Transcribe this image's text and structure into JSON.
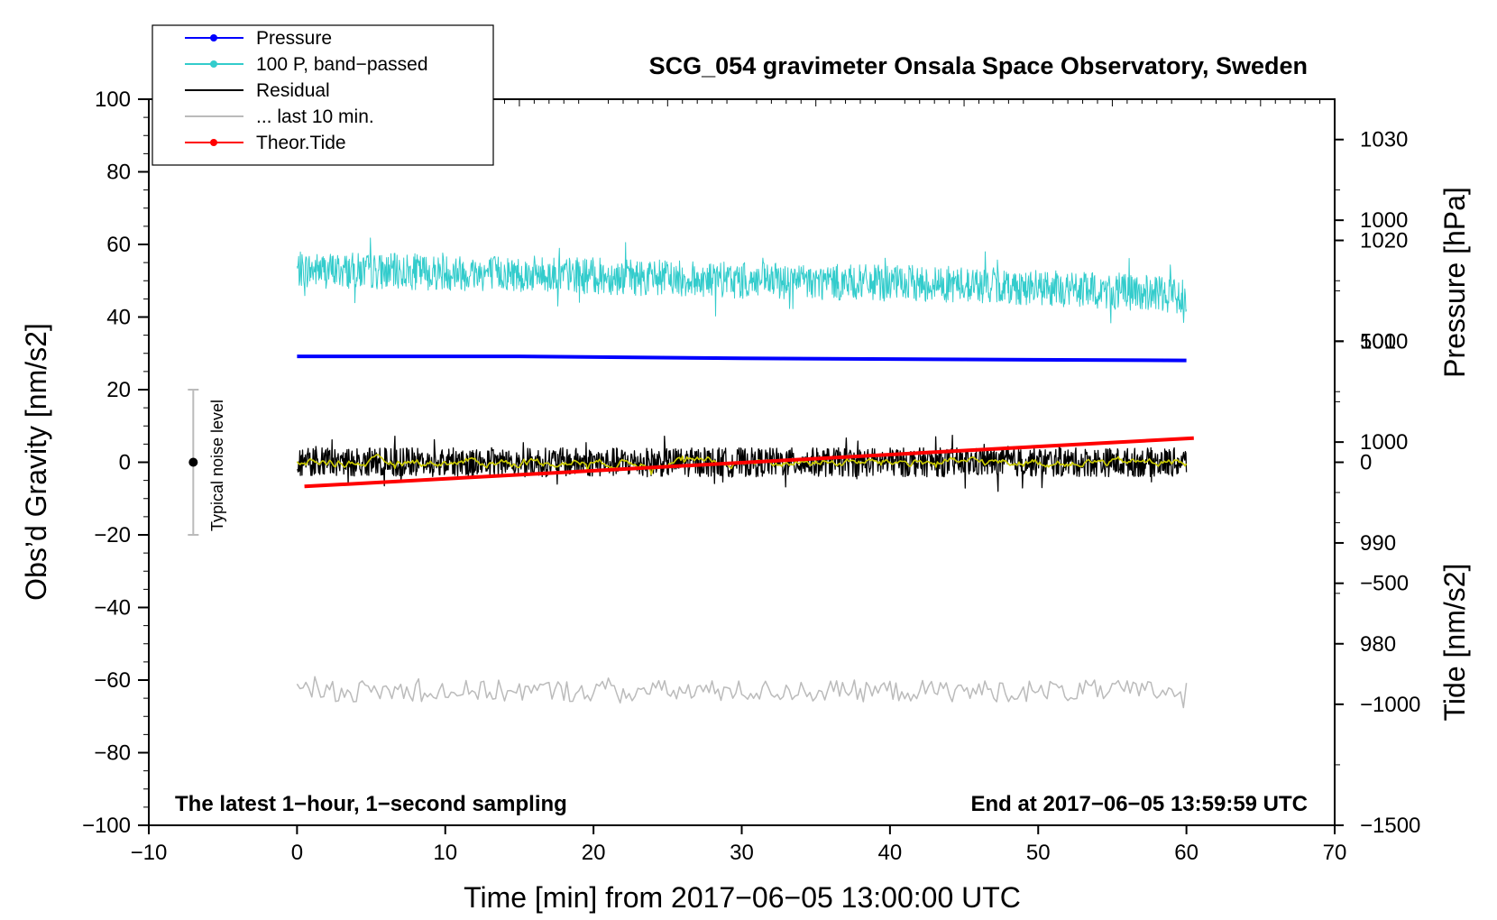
{
  "chart_data": {
    "type": "line",
    "title": "SCG_054 gravimeter Onsala Space Observatory, Sweden",
    "xlabel": "Time [min] from 2017−06−05 13:00:00 UTC",
    "ylabel_left": "Obs’d Gravity [nm/s2]",
    "ylabel_right_top": "Pressure [hPa]",
    "ylabel_right_bottom": "Tide [nm/s2]",
    "xlim": [
      -10,
      70
    ],
    "ylim": [
      -100,
      100
    ],
    "pressure_axis_range": [
      962,
      1034
    ],
    "tide_axis_range": [
      -1500,
      1500
    ],
    "x_ticks": [
      "−10",
      "0",
      "10",
      "20",
      "30",
      "40",
      "50",
      "60",
      "70"
    ],
    "y_ticks": [
      "100",
      "80",
      "60",
      "40",
      "20",
      "0",
      "−20",
      "−40",
      "−60",
      "−80",
      "−100"
    ],
    "pressure_ticks": [
      "1030",
      "1020",
      "1010",
      "1000",
      "990",
      "980"
    ],
    "tide_ticks": [
      "1000",
      "500",
      "0",
      "−500",
      "−1000",
      "−1500"
    ],
    "note_left": "The latest 1−hour, 1−second sampling",
    "note_right": "End at 2017−06−05 13:59:59 UTC",
    "noise_label": "Typical noise level",
    "noise_bar": {
      "x": -7,
      "center": 0,
      "low": -20,
      "high": 20
    },
    "legend": [
      {
        "label": "Pressure",
        "color": "#0000ff",
        "marker": true
      },
      {
        "label": "100 P, band−passed",
        "color": "#33cccc",
        "marker": true
      },
      {
        "label": "Residual",
        "color": "#000000",
        "marker": false
      },
      {
        "label": "... last 10 min.",
        "color": "#bbbbbb",
        "marker": false
      },
      {
        "label": "Theor.Tide",
        "color": "#ff0000",
        "marker": true
      }
    ],
    "series": [
      {
        "name": "Pressure",
        "axis": "pressure",
        "color": "#0000ff",
        "x": [
          0,
          15,
          30,
          45,
          60
        ],
        "values": [
          1008.5,
          1008.5,
          1008.3,
          1008.2,
          1008.1
        ]
      },
      {
        "name": "100 P, band−passed",
        "axis": "left",
        "color": "#33cccc",
        "x_range": [
          0,
          60
        ],
        "center": [
          53,
          52,
          50,
          49,
          46
        ],
        "amplitude": 5
      },
      {
        "name": "Residual",
        "axis": "left",
        "color": "#000000",
        "x_range": [
          0,
          60
        ],
        "center": [
          0,
          0,
          0,
          0,
          0
        ],
        "amplitude": 4
      },
      {
        "name": "Residual smoothed",
        "axis": "left",
        "color": "#cccc00",
        "x_range": [
          0,
          60
        ],
        "center": [
          0,
          0,
          0,
          0,
          0
        ],
        "amplitude": 1.2
      },
      {
        "name": "... last 10 min.",
        "axis": "left",
        "color": "#bbbbbb",
        "x_range": [
          0,
          60
        ],
        "center": [
          -63,
          -63,
          -63,
          -63,
          -63
        ],
        "amplitude": 3
      },
      {
        "name": "Theor.Tide",
        "axis": "tide",
        "color": "#ff0000",
        "x": [
          0.5,
          60.5
        ],
        "values": [
          -100,
          100
        ]
      }
    ]
  }
}
